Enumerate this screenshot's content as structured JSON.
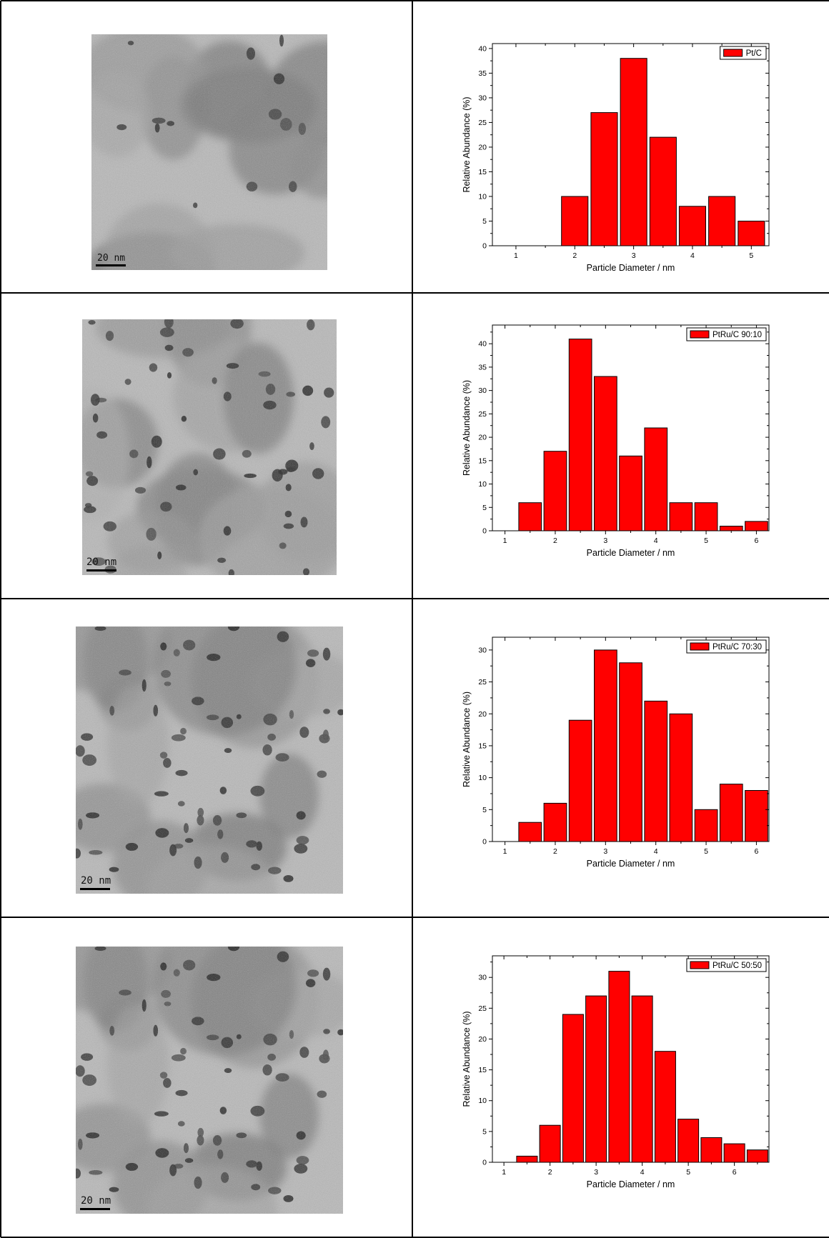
{
  "tem_images": [
    {
      "scale_label": "20 nm"
    },
    {
      "scale_label": "20 nm"
    },
    {
      "scale_label": "20 nm"
    },
    {
      "scale_label": "20 nm"
    }
  ],
  "colors": {
    "bar": "#ff0000",
    "bar_stroke": "#000000",
    "grid": "#000000"
  },
  "chart_data": [
    {
      "type": "bar",
      "title": "",
      "legend": "Pt/C",
      "legend_position": "top-right",
      "xlabel": "Particle Diameter / nm",
      "ylabel": "Relative Abundance (%)",
      "xlim": [
        0.6,
        5.3
      ],
      "ylim": [
        0,
        41
      ],
      "xticks": [
        1,
        2,
        3,
        4,
        5
      ],
      "yticks": [
        0,
        5,
        10,
        15,
        20,
        25,
        30,
        35,
        40
      ],
      "bar_width": 0.45,
      "x": [
        2.0,
        2.5,
        3.0,
        3.5,
        4.0,
        4.5,
        5.0
      ],
      "values": [
        10,
        27,
        38,
        22,
        8,
        10,
        5
      ]
    },
    {
      "type": "bar",
      "title": "",
      "legend": "PtRu/C 90:10",
      "legend_position": "top-right",
      "xlabel": "Particle Diameter / nm",
      "ylabel": "Relative Abundance (%)",
      "xlim": [
        0.75,
        6.25
      ],
      "ylim": [
        0,
        44
      ],
      "xticks": [
        1,
        2,
        3,
        4,
        5,
        6
      ],
      "yticks": [
        0,
        5,
        10,
        15,
        20,
        25,
        30,
        35,
        40
      ],
      "bar_width": 0.45,
      "x": [
        1.5,
        2.0,
        2.5,
        3.0,
        3.5,
        4.0,
        4.5,
        5.0,
        5.5,
        6.0
      ],
      "values": [
        6,
        17,
        41,
        33,
        16,
        22,
        6,
        6,
        1,
        2
      ]
    },
    {
      "type": "bar",
      "title": "",
      "legend": "PtRu/C 70:30",
      "legend_position": "top-right",
      "xlabel": "Particle Diameter / nm",
      "ylabel": "Relative Abundance (%)",
      "xlim": [
        0.75,
        6.25
      ],
      "ylim": [
        0,
        32
      ],
      "xticks": [
        1,
        2,
        3,
        4,
        5,
        6
      ],
      "yticks": [
        0,
        5,
        10,
        15,
        20,
        25,
        30
      ],
      "bar_width": 0.45,
      "x": [
        1.5,
        2.0,
        2.5,
        3.0,
        3.5,
        4.0,
        4.5,
        5.0,
        5.5,
        6.0
      ],
      "values": [
        3,
        6,
        19,
        30,
        28,
        22,
        20,
        5,
        9,
        8
      ]
    },
    {
      "type": "bar",
      "title": "",
      "legend": "PtRu/C 50:50",
      "legend_position": "top-right",
      "xlabel": "Particle Diameter / nm",
      "ylabel": "Relative Abundance (%)",
      "xlim": [
        0.75,
        6.75
      ],
      "ylim": [
        0,
        33.5
      ],
      "xticks": [
        1,
        2,
        3,
        4,
        5,
        6
      ],
      "yticks": [
        0,
        5,
        10,
        15,
        20,
        25,
        30
      ],
      "bar_width": 0.45,
      "x": [
        1.5,
        2.0,
        2.5,
        3.0,
        3.5,
        4.0,
        4.5,
        5.0,
        5.5,
        6.0,
        6.5
      ],
      "values": [
        1,
        6,
        24,
        27,
        31,
        27,
        18,
        7,
        4,
        3,
        2
      ]
    }
  ]
}
